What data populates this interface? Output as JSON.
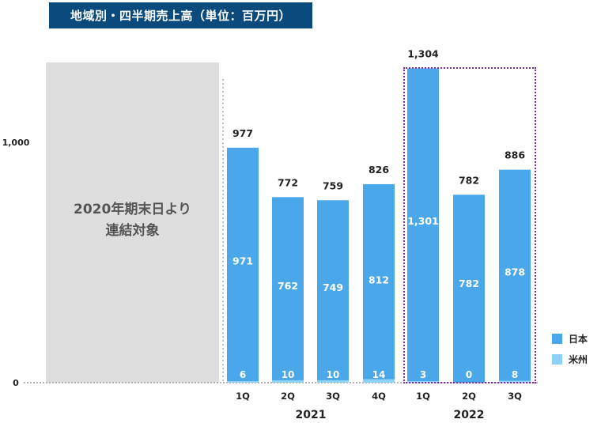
{
  "title": "地域別・四半期売上高（単位：百万円）",
  "note_lines": [
    "2020年期末日より",
    "連結対象"
  ],
  "colors": {
    "japan": "#4aa8ea",
    "americas": "#8dd1f5",
    "title_bg": "#0b4a7d",
    "highlight": "#7a2fa3"
  },
  "chart_data": {
    "type": "bar",
    "stacked": true,
    "title": "地域別・四半期売上高（単位：百万円）",
    "ylim": [
      0,
      1350
    ],
    "y_ticks": [
      {
        "value": 0,
        "label": "0"
      },
      {
        "value": 1000,
        "label": "1,000"
      }
    ],
    "categories": [
      {
        "quarter": "1Q",
        "year": "2021",
        "japan": 971,
        "americas": 6,
        "total": 977,
        "japan_label": "971",
        "americas_label": "6",
        "total_label": "977"
      },
      {
        "quarter": "2Q",
        "year": "2021",
        "japan": 762,
        "americas": 10,
        "total": 772,
        "japan_label": "762",
        "americas_label": "10",
        "total_label": "772"
      },
      {
        "quarter": "3Q",
        "year": "2021",
        "japan": 749,
        "americas": 10,
        "total": 759,
        "japan_label": "749",
        "americas_label": "10",
        "total_label": "759"
      },
      {
        "quarter": "4Q",
        "year": "2021",
        "japan": 812,
        "americas": 14,
        "total": 826,
        "japan_label": "812",
        "americas_label": "14",
        "total_label": "826"
      },
      {
        "quarter": "1Q",
        "year": "2022",
        "japan": 1301,
        "americas": 3,
        "total": 1304,
        "japan_label": "1,301",
        "americas_label": "3",
        "total_label": "1,304"
      },
      {
        "quarter": "2Q",
        "year": "2022",
        "japan": 782,
        "americas": 0,
        "total": 782,
        "japan_label": "782",
        "americas_label": "0",
        "total_label": "782"
      },
      {
        "quarter": "3Q",
        "year": "2022",
        "japan": 878,
        "americas": 8,
        "total": 886,
        "japan_label": "878",
        "americas_label": "8",
        "total_label": "886"
      }
    ],
    "years": [
      "2021",
      "2022"
    ],
    "series": [
      {
        "name": "日本",
        "key": "japan"
      },
      {
        "name": "米州",
        "key": "americas"
      }
    ],
    "legend_position": "bottom-right",
    "grid": false
  }
}
